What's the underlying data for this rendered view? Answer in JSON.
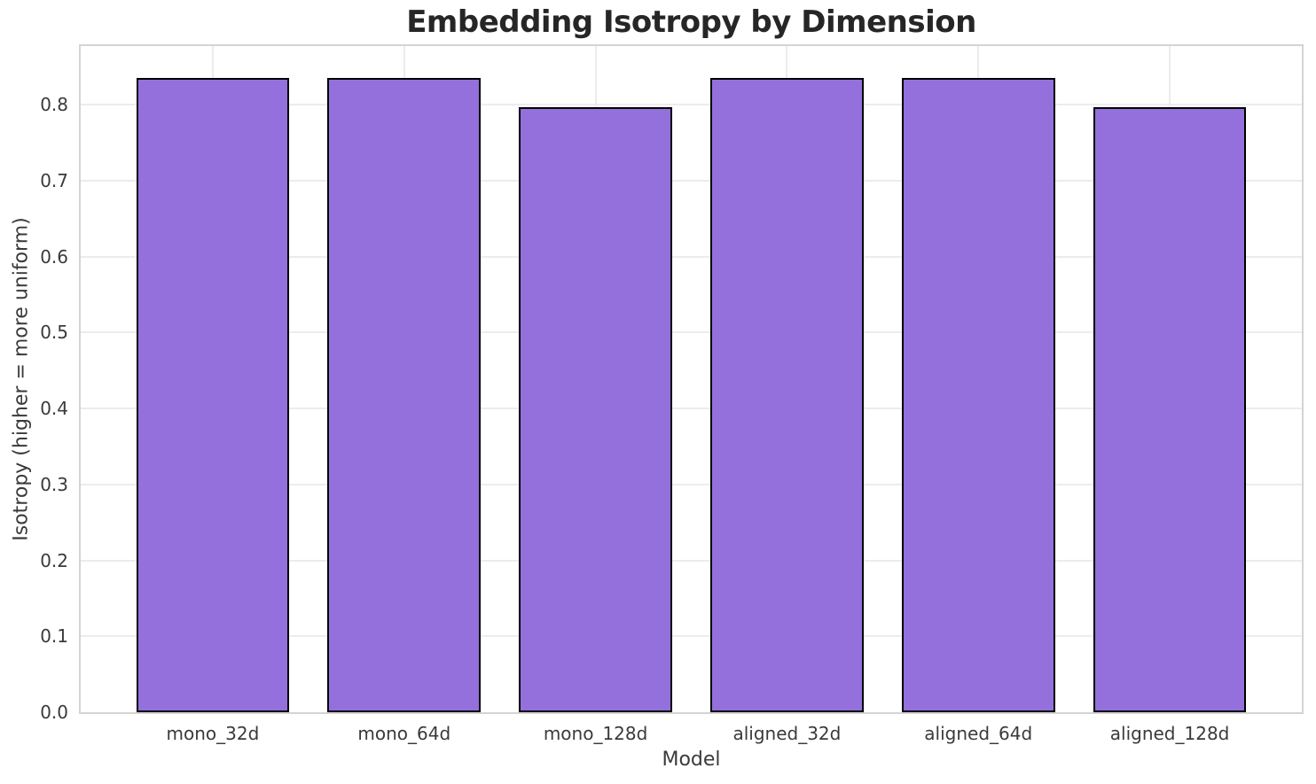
{
  "chart_data": {
    "type": "bar",
    "title": "Embedding Isotropy by Dimension",
    "xlabel": "Model",
    "ylabel": "Isotropy (higher = more uniform)",
    "categories": [
      "mono_32d",
      "mono_64d",
      "mono_128d",
      "aligned_32d",
      "aligned_64d",
      "aligned_128d"
    ],
    "values": [
      0.835,
      0.835,
      0.797,
      0.835,
      0.835,
      0.797
    ],
    "ylim": [
      0,
      0.877
    ],
    "yticks": [
      0.0,
      0.1,
      0.2,
      0.3,
      0.4,
      0.5,
      0.6,
      0.7,
      0.8
    ],
    "grid": true,
    "legend": null,
    "bar_width_fraction": 0.8,
    "x_edge_pad_units": 0.69,
    "colors": {
      "bar_fill": "#9370DB",
      "bar_edge": "#000000",
      "grid": "#ECECEC",
      "spine": "#D4D4D4",
      "title_text": "#262626",
      "tick_text": "#3A3A3A",
      "background": "#FFFFFF"
    }
  }
}
